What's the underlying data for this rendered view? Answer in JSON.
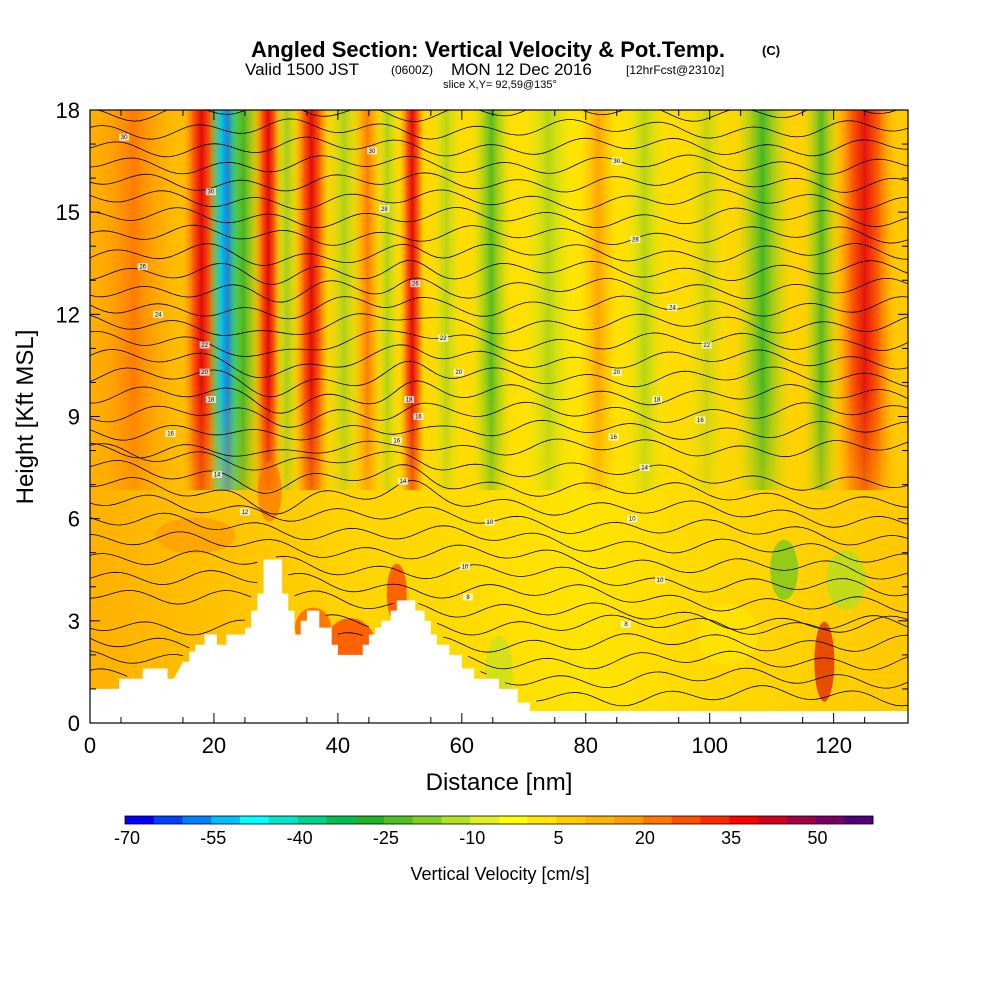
{
  "chart_data": {
    "type": "heatmap",
    "title": "Angled Section: Vertical Velocity & Pot.Temp.",
    "title_tag": "(C)",
    "subtitle_main_a": "Valid 1500 JST",
    "subtitle_utc": "(0600Z)",
    "subtitle_main_b": "MON 12 Dec 2016",
    "subtitle_fcst": "[12hrFcst@2310z]",
    "slice_label": "slice X,Y= 92,59@135°",
    "xlabel": "Distance [nm]",
    "ylabel": "Height [Kft MSL]",
    "xlim": [
      0,
      132
    ],
    "ylim": [
      0,
      18
    ],
    "x_ticks": [
      "0",
      "20",
      "40",
      "60",
      "80",
      "100",
      "120"
    ],
    "y_ticks": [
      "0",
      "3",
      "6",
      "9",
      "12",
      "15",
      "18"
    ],
    "colorbar": {
      "label": "Vertical Velocity [cm/s]",
      "tick_labels": [
        "-70",
        "-55",
        "-40",
        "-25",
        "-10",
        "5",
        "20",
        "35",
        "50"
      ],
      "colors": [
        "#0000ff",
        "#0040ff",
        "#0080ff",
        "#00c0ff",
        "#00ffff",
        "#00e6c8",
        "#00d28c",
        "#00be50",
        "#20b428",
        "#50c020",
        "#80d020",
        "#b0e020",
        "#e0f020",
        "#ffff00",
        "#ffe600",
        "#ffcc00",
        "#ffb400",
        "#ff9c00",
        "#ff7800",
        "#ff5000",
        "#ff2800",
        "#ff0000",
        "#d2001e",
        "#a50046",
        "#780064",
        "#500078"
      ]
    },
    "contour_labels": [
      {
        "text": "30",
        "x": 5.5,
        "y": 17.2
      },
      {
        "text": "30",
        "x": 45.5,
        "y": 16.8
      },
      {
        "text": "30",
        "x": 85,
        "y": 16.5
      },
      {
        "text": "30",
        "x": 19.5,
        "y": 15.6
      },
      {
        "text": "28",
        "x": 47.5,
        "y": 15.1
      },
      {
        "text": "28",
        "x": 88,
        "y": 14.2
      },
      {
        "text": "26",
        "x": 8.5,
        "y": 13.4
      },
      {
        "text": "26",
        "x": 52.5,
        "y": 12.9
      },
      {
        "text": "24",
        "x": 11,
        "y": 12.0
      },
      {
        "text": "24",
        "x": 94,
        "y": 12.2
      },
      {
        "text": "22",
        "x": 18.5,
        "y": 11.1
      },
      {
        "text": "22",
        "x": 57,
        "y": 11.3
      },
      {
        "text": "22",
        "x": 99.5,
        "y": 11.1
      },
      {
        "text": "20",
        "x": 18.5,
        "y": 10.3
      },
      {
        "text": "20",
        "x": 59.5,
        "y": 10.3
      },
      {
        "text": "20",
        "x": 85,
        "y": 10.3
      },
      {
        "text": "18",
        "x": 19.5,
        "y": 9.5
      },
      {
        "text": "18",
        "x": 51.5,
        "y": 9.5
      },
      {
        "text": "18",
        "x": 91.5,
        "y": 9.5
      },
      {
        "text": "16",
        "x": 13,
        "y": 8.5
      },
      {
        "text": "16",
        "x": 53,
        "y": 9.0
      },
      {
        "text": "16",
        "x": 98.5,
        "y": 8.9
      },
      {
        "text": "16",
        "x": 84.5,
        "y": 8.4
      },
      {
        "text": "16",
        "x": 49.5,
        "y": 8.3
      },
      {
        "text": "14",
        "x": 20.5,
        "y": 7.3
      },
      {
        "text": "14",
        "x": 50.5,
        "y": 7.1
      },
      {
        "text": "14",
        "x": 89.5,
        "y": 7.5
      },
      {
        "text": "12",
        "x": 25,
        "y": 6.2
      },
      {
        "text": "10",
        "x": 64.5,
        "y": 5.9
      },
      {
        "text": "10",
        "x": 87.5,
        "y": 6.0
      },
      {
        "text": "10",
        "x": 60.5,
        "y": 4.6
      },
      {
        "text": "10",
        "x": 92,
        "y": 4.2
      },
      {
        "text": "8",
        "x": 61,
        "y": 3.7
      },
      {
        "text": "8",
        "x": 86.5,
        "y": 2.9
      }
    ],
    "terrain": [
      [
        0,
        1
      ],
      [
        4.7,
        1
      ],
      [
        4.7,
        1.3
      ],
      [
        8.5,
        1.3
      ],
      [
        8.5,
        1.6
      ],
      [
        12.5,
        1.6
      ],
      [
        12.5,
        1.3
      ],
      [
        13.5,
        1.3
      ],
      [
        15,
        1.8
      ],
      [
        16,
        1.8
      ],
      [
        16,
        2.1
      ],
      [
        17,
        2.1
      ],
      [
        17,
        2.3
      ],
      [
        18.5,
        2.3
      ],
      [
        18.5,
        2.6
      ],
      [
        20.5,
        2.6
      ],
      [
        20.5,
        2.3
      ],
      [
        22,
        2.3
      ],
      [
        22,
        2.6
      ],
      [
        25,
        2.6
      ],
      [
        25,
        2.8
      ],
      [
        26,
        2.8
      ],
      [
        26,
        3.3
      ],
      [
        27,
        3.3
      ],
      [
        27,
        3.8
      ],
      [
        28,
        3.8
      ],
      [
        28,
        4.8
      ],
      [
        31,
        4.8
      ],
      [
        31,
        3.8
      ],
      [
        32,
        3.8
      ],
      [
        32,
        3.3
      ],
      [
        33,
        3.3
      ],
      [
        33,
        2.6
      ],
      [
        34,
        2.6
      ],
      [
        34,
        3.0
      ],
      [
        35,
        3.0
      ],
      [
        35,
        3.3
      ],
      [
        37,
        3.3
      ],
      [
        37,
        2.8
      ],
      [
        39,
        2.8
      ],
      [
        39,
        2.3
      ],
      [
        40,
        2.3
      ],
      [
        40,
        2.0
      ],
      [
        44,
        2.0
      ],
      [
        44,
        2.3
      ],
      [
        45,
        2.3
      ],
      [
        45,
        2.6
      ],
      [
        46,
        2.6
      ],
      [
        46,
        2.8
      ],
      [
        47,
        2.8
      ],
      [
        47,
        3.0
      ],
      [
        48.5,
        3.0
      ],
      [
        48.5,
        3.3
      ],
      [
        49.5,
        3.3
      ],
      [
        49.5,
        3.6
      ],
      [
        52.5,
        3.6
      ],
      [
        52.5,
        3.3
      ],
      [
        54,
        3.3
      ],
      [
        54,
        3.0
      ],
      [
        55,
        3.0
      ],
      [
        55,
        2.6
      ],
      [
        56,
        2.6
      ],
      [
        56,
        2.3
      ],
      [
        58,
        2.3
      ],
      [
        58,
        2.0
      ],
      [
        60,
        2.0
      ],
      [
        60,
        1.6
      ],
      [
        62,
        1.6
      ],
      [
        62,
        1.3
      ],
      [
        66,
        1.3
      ],
      [
        66,
        1.0
      ],
      [
        69,
        1.0
      ],
      [
        69,
        0.6
      ],
      [
        71,
        0.6
      ],
      [
        71,
        0.35
      ],
      [
        132,
        0.35
      ],
      [
        132,
        0
      ],
      [
        0,
        0
      ]
    ]
  }
}
